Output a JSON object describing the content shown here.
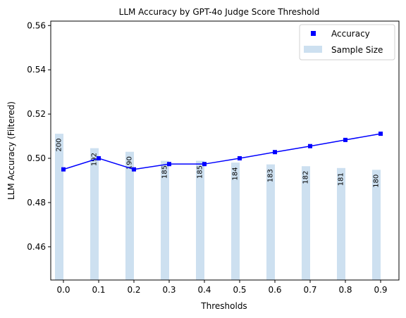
{
  "chart_data": {
    "type": "bar",
    "title": "LLM Accuracy by GPT-4o Judge Score Threshold",
    "xlabel": "Thresholds",
    "ylabel": "LLM Accuracy (Filtered)",
    "categories": [
      "0.0",
      "0.1",
      "0.2",
      "0.3",
      "0.4",
      "0.5",
      "0.6",
      "0.7",
      "0.8",
      "0.9"
    ],
    "ylim": [
      0.445,
      0.562
    ],
    "yticks": [
      "0.46",
      "0.48",
      "0.50",
      "0.52",
      "0.54",
      "0.56"
    ],
    "ytick_values": [
      0.46,
      0.48,
      0.5,
      0.52,
      0.54,
      0.56
    ],
    "series": [
      {
        "name": "Accuracy",
        "type": "line",
        "color": "#0000ff",
        "values": [
          0.495,
          0.5,
          0.495,
          0.4974,
          0.4974,
          0.5,
          0.5028,
          0.5055,
          0.5083,
          0.5111
        ]
      },
      {
        "name": "Sample Size",
        "type": "bar",
        "color": "#cde0f0",
        "values": [
          200,
          192,
          190,
          185,
          185,
          184,
          183,
          182,
          181,
          180
        ],
        "labels": [
          "200",
          "192",
          "190",
          "185",
          "185",
          "184",
          "183",
          "182",
          "181",
          "180"
        ]
      }
    ],
    "legend": {
      "position": "top-right",
      "entries": [
        "Accuracy",
        "Sample Size"
      ]
    },
    "grid": false
  }
}
